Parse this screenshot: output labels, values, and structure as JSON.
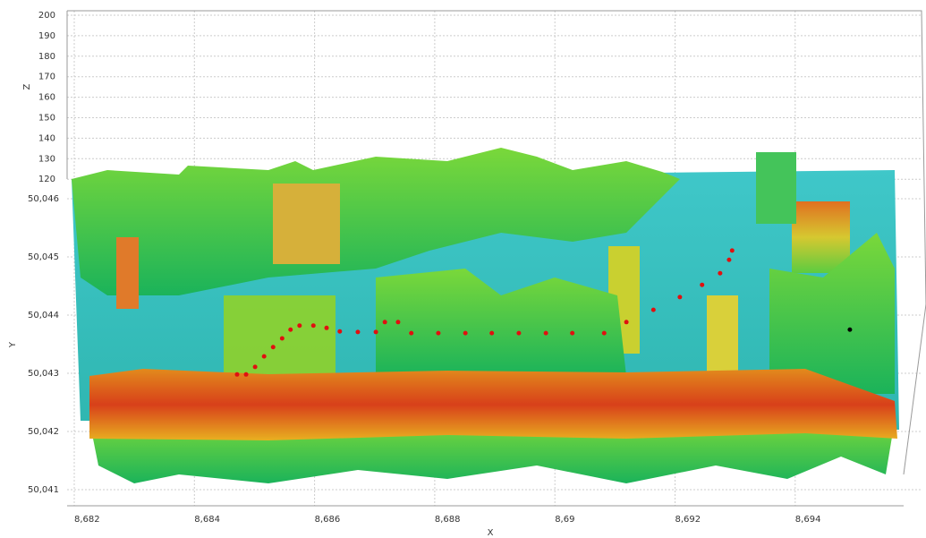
{
  "chart_data": {
    "type": "surface3d",
    "xlabel": "X",
    "ylabel": "Y",
    "zlabel": "Z",
    "xlim": [
      8.682,
      8.696
    ],
    "ylim": [
      50.0408,
      50.0463
    ],
    "zlim": [
      120,
      200
    ],
    "xticks": [
      {
        "value": 8.682,
        "label": "8,682"
      },
      {
        "value": 8.684,
        "label": "8,684"
      },
      {
        "value": 8.686,
        "label": "8,686"
      },
      {
        "value": 8.688,
        "label": "8,688"
      },
      {
        "value": 8.69,
        "label": "8,69"
      },
      {
        "value": 8.692,
        "label": "8,692"
      },
      {
        "value": 8.694,
        "label": "8,694"
      }
    ],
    "yticks": [
      {
        "value": 50.041,
        "label": "50,041"
      },
      {
        "value": 50.042,
        "label": "50,042"
      },
      {
        "value": 50.043,
        "label": "50,043"
      },
      {
        "value": 50.044,
        "label": "50,044"
      },
      {
        "value": 50.045,
        "label": "50,045"
      },
      {
        "value": 50.046,
        "label": "50,046"
      }
    ],
    "zticks": [
      120,
      130,
      140,
      150,
      160,
      170,
      180,
      190,
      200
    ],
    "grid": true,
    "series": [
      {
        "color": "#e01010",
        "x": [
          8.68471,
          8.68486,
          8.68501,
          8.68516,
          8.68531,
          8.68546,
          8.6856,
          8.68575,
          8.68598,
          8.6862,
          8.68642,
          8.68672,
          8.68702,
          8.68717,
          8.68739,
          8.68761,
          8.68806,
          8.68851,
          8.68895,
          8.6894,
          8.68985,
          8.69029,
          8.69082,
          8.69119,
          8.69164,
          8.69208,
          8.69245,
          8.69275,
          8.6929,
          8.69295
        ],
        "values": [
          50.04298,
          50.04298,
          50.04311,
          50.04329,
          50.04345,
          50.0436,
          50.04375,
          50.04382,
          50.04382,
          50.04378,
          50.04372,
          50.04371,
          50.04371,
          50.04388,
          50.04388,
          50.04369,
          50.04369,
          50.04369,
          50.04369,
          50.04369,
          50.04369,
          50.04369,
          50.04369,
          50.04388,
          50.04409,
          50.04431,
          50.04452,
          50.04472,
          50.04495,
          50.04511
        ]
      },
      {
        "color": "#000000",
        "x": [
          8.69491
        ],
        "values": [
          50.04375
        ]
      }
    ]
  }
}
